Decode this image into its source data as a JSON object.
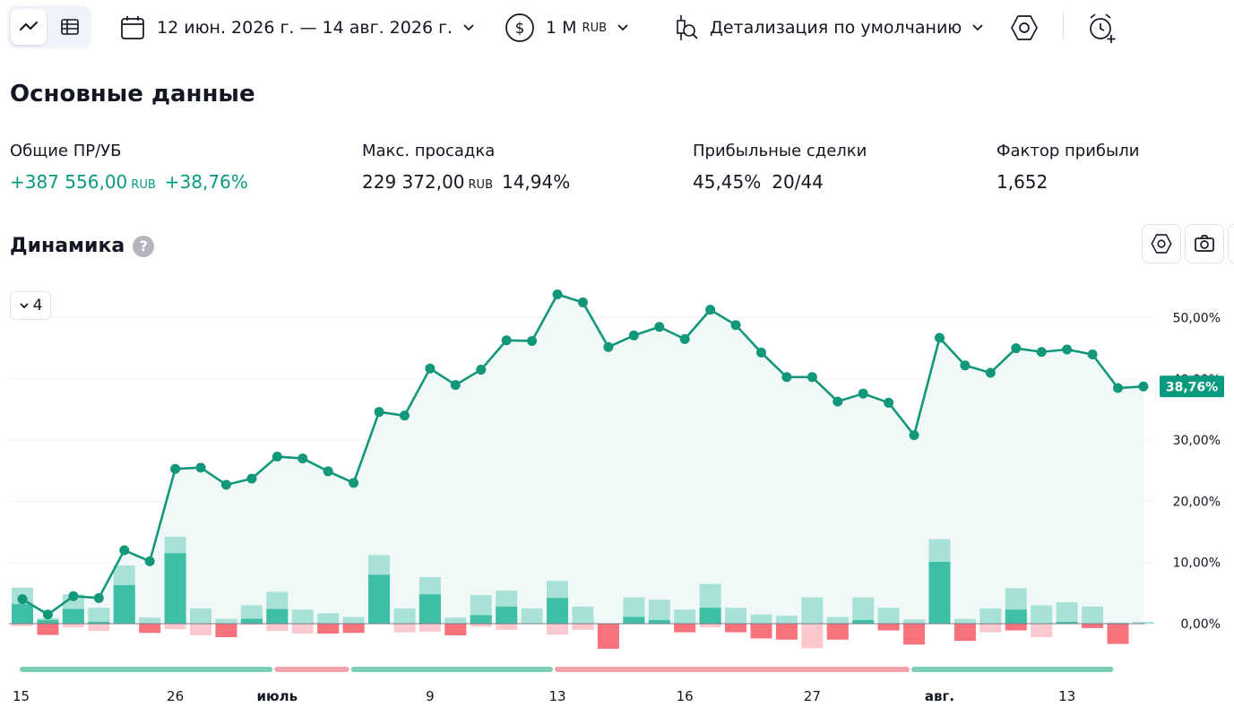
{
  "toolbar": {
    "view_modes": [
      {
        "name": "line-chart-view",
        "icon": "line-chart-icon",
        "active": true
      },
      {
        "name": "table-view",
        "icon": "table-icon",
        "active": false
      }
    ],
    "date_range": "12 июн. 2026 г. — 14 авг. 2026 г.",
    "capital": {
      "value": "1 M",
      "currency": "RUB"
    },
    "detail": "Детализация по умолчанию",
    "settings_icon": "gear-hex-icon",
    "alert_icon": "add-alarm-icon"
  },
  "summary": {
    "title": "Основные данные",
    "stats": [
      {
        "label": "Общие ПР/УБ",
        "value": "+387 556,00",
        "currency": "RUB",
        "extra": "+38,76%",
        "positive": true
      },
      {
        "label": "Макс. просадка",
        "value": "229 372,00",
        "currency": "RUB",
        "extra": "14,94%",
        "positive": false
      },
      {
        "label": "Прибыльные сделки",
        "value": "45,45%",
        "currency": "",
        "extra": "20/44",
        "positive": false
      },
      {
        "label": "Фактор прибыли",
        "value": "1,652",
        "currency": "",
        "extra": "",
        "positive": false
      }
    ]
  },
  "dynamics": {
    "title": "Динамика",
    "help": "?",
    "collapse_value": "4"
  },
  "colors": {
    "accent": "#089981",
    "line": "#12977a",
    "area": "#f0f9f8",
    "bar_pos_dark": "#3fbfa6",
    "bar_pos_light": "#a8e2d6",
    "bar_neg_dark": "#f7727a",
    "bar_neg_light": "#fbc9cd",
    "seg_pos": "#7fcfb8",
    "seg_neg": "#f2a2a8"
  },
  "chart_data": {
    "type": "line",
    "x_labels": [
      "15",
      "26",
      "июль",
      "9",
      "13",
      "16",
      "27",
      "авг.",
      "13"
    ],
    "y_ticks": [
      "0,00%",
      "10,00%",
      "20,00%",
      "30,00%",
      "40,00%",
      "50,00%"
    ],
    "ylim": [
      0,
      55
    ],
    "last_label": "38,76%",
    "equity": [
      4.0,
      1.5,
      4.5,
      4.2,
      12.0,
      10.2,
      25.3,
      25.5,
      22.7,
      23.7,
      27.3,
      27.0,
      24.9,
      23.0,
      34.6,
      34.0,
      41.7,
      39.0,
      41.5,
      46.3,
      46.2,
      53.8,
      52.5,
      45.2,
      47.1,
      48.5,
      46.5,
      51.3,
      48.8,
      44.3,
      40.3,
      40.3,
      36.3,
      37.6,
      36.1,
      30.8,
      46.7,
      42.2,
      41.0,
      45.0,
      44.4,
      44.8,
      44.0,
      38.5,
      38.76
    ],
    "bars_pos_dark": [
      3.2,
      0.6,
      2.4,
      0.3,
      6.3,
      0,
      11.5,
      0,
      0,
      0.8,
      2.4,
      0,
      0,
      0,
      8.0,
      0,
      4.8,
      0,
      1.4,
      2.8,
      0,
      4.2,
      0,
      0,
      1.1,
      0.6,
      0,
      2.6,
      0,
      0,
      0,
      0,
      0,
      0.6,
      0,
      0,
      10.1,
      0,
      0,
      2.3,
      0,
      0.3,
      0,
      0,
      0
    ],
    "bars_pos_light": [
      5.9,
      0.9,
      4.8,
      2.6,
      9.5,
      1.0,
      14.2,
      2.5,
      0.8,
      3.0,
      5.2,
      2.3,
      1.7,
      1.1,
      11.2,
      2.5,
      7.6,
      1.0,
      4.7,
      5.4,
      2.5,
      7.0,
      2.8,
      0,
      4.3,
      3.9,
      2.3,
      6.5,
      2.6,
      1.5,
      1.3,
      4.3,
      1.1,
      4.3,
      2.6,
      0.7,
      13.8,
      0.8,
      2.5,
      5.8,
      3.0,
      3.5,
      2.8,
      0.2,
      0.3
    ],
    "bars_neg_dark": [
      0,
      1.8,
      0,
      0,
      0,
      1.5,
      0,
      0,
      2.2,
      0,
      0,
      0,
      1.6,
      1.5,
      0,
      0,
      0,
      1.9,
      0,
      0,
      0,
      0,
      0,
      4.1,
      0,
      0,
      1.4,
      0,
      1.4,
      2.4,
      2.6,
      0,
      2.6,
      0,
      1.1,
      3.4,
      0,
      2.8,
      0,
      1.1,
      0,
      0,
      0.7,
      3.3,
      0
    ],
    "bars_neg_light": [
      0.4,
      1.9,
      0.6,
      1.2,
      0,
      1.5,
      0.9,
      1.9,
      2.2,
      0.2,
      1.2,
      1.6,
      1.6,
      1.5,
      0,
      1.4,
      1.3,
      1.9,
      0.5,
      1.0,
      0,
      1.8,
      1.0,
      4.1,
      0,
      0,
      1.4,
      0.6,
      1.4,
      2.4,
      2.6,
      4.0,
      2.6,
      0,
      1.1,
      3.4,
      0,
      2.8,
      1.4,
      1.1,
      2.2,
      0,
      0.7,
      3.3,
      0
    ],
    "series_segments": [
      {
        "from": 0,
        "to": 10,
        "result": "profit"
      },
      {
        "from": 10,
        "to": 13,
        "result": "loss"
      },
      {
        "from": 13,
        "to": 21,
        "result": "profit"
      },
      {
        "from": 21,
        "to": 35,
        "result": "loss"
      },
      {
        "from": 35,
        "to": 43,
        "result": "profit"
      }
    ]
  }
}
